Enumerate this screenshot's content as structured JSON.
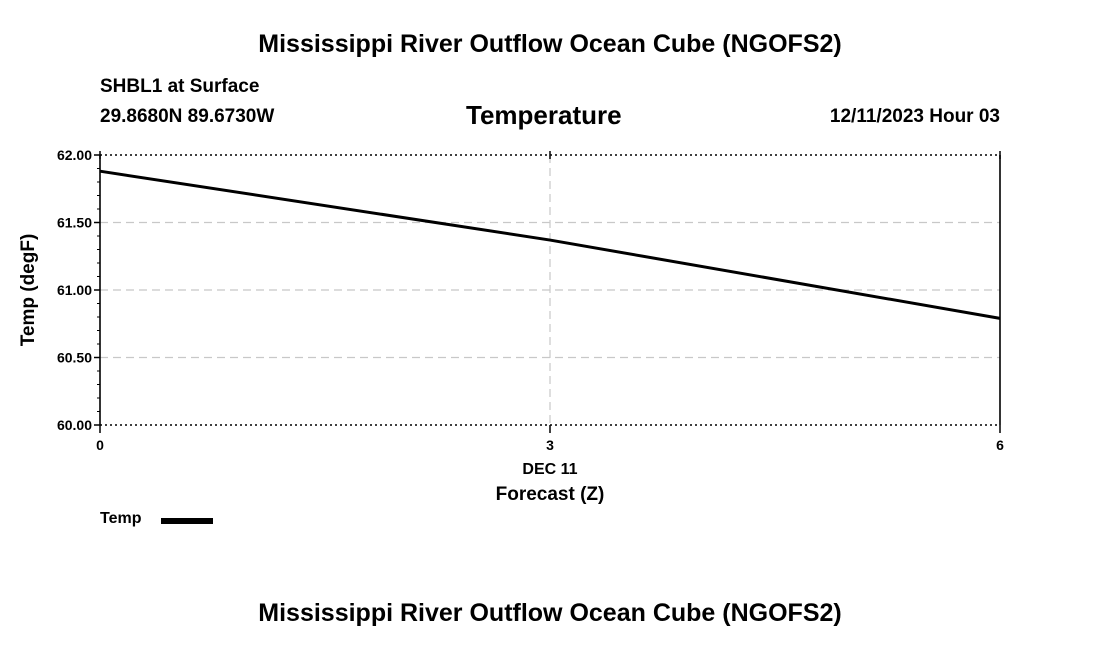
{
  "page": {
    "title_top": "Mississippi River Outflow Ocean Cube (NGOFS2)",
    "title_bottom": "Mississippi River Outflow Ocean Cube (NGOFS2)",
    "station": "SHBL1 at Surface",
    "coords": "29.8680N  89.6730W",
    "datetime": "12/11/2023 Hour 03"
  },
  "legend": {
    "label": "Temp",
    "color": "#000000"
  },
  "chart_data": {
    "type": "line",
    "title": "Temperature",
    "xlabel": "Forecast (Z)",
    "xlabel_date": "DEC 11",
    "ylabel": "Temp (degF)",
    "xlim": [
      0,
      6
    ],
    "ylim": [
      60.0,
      62.0
    ],
    "xticks": [
      0,
      3,
      6
    ],
    "xtick_labels": [
      "0",
      "3",
      "6"
    ],
    "yticks": [
      60.0,
      60.5,
      61.0,
      61.5,
      62.0
    ],
    "ytick_labels": [
      "60.00",
      "60.50",
      "61.00",
      "61.50",
      "62.00"
    ],
    "grid": true,
    "series": [
      {
        "name": "Temp",
        "x": [
          0,
          3,
          6
        ],
        "values": [
          61.88,
          61.37,
          60.79
        ]
      }
    ]
  }
}
